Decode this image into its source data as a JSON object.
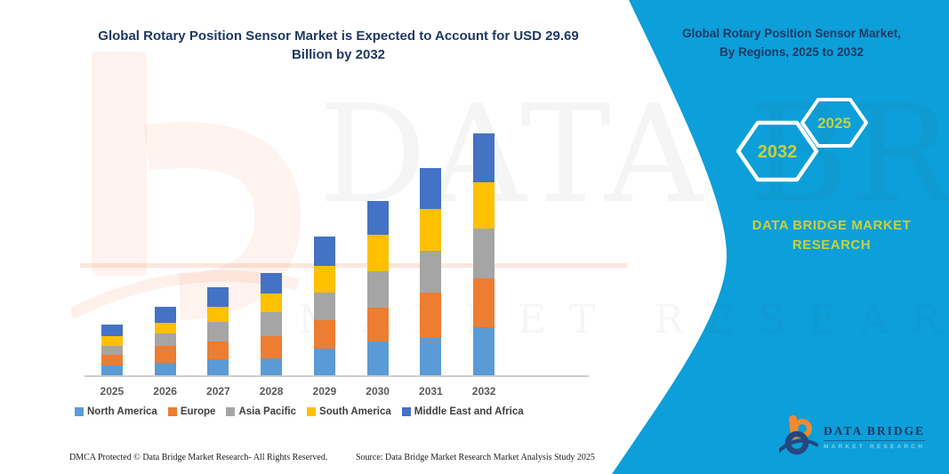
{
  "header": {
    "title_line1": "Global Rotary Position Sensor Market is Expected to Account for USD 29.69",
    "title_line2": "Billion by 2032"
  },
  "panel": {
    "title_line1": "Global Rotary Position Sensor Market,",
    "title_line2": "By Regions, 2025 to 2032",
    "bg_color": "#0C9FD9",
    "accent_text_color": "#C6D23B",
    "hexagons": [
      {
        "label": "2032"
      },
      {
        "label": "2025"
      }
    ],
    "brand_text": "DATA BRIDGE MARKET RESEARCH"
  },
  "chart_data": {
    "type": "bar",
    "stacked": true,
    "title": "Global Rotary Position Sensor Market is Expected to Account for USD 29.69 Billion by 2032",
    "unit": "USD Billion",
    "xlabel": "",
    "ylabel": "",
    "y_axis_visible": false,
    "grid": false,
    "legend_position": "bottom",
    "ylim": [
      0,
      31
    ],
    "categories": [
      "2025",
      "2026",
      "2027",
      "2028",
      "2029",
      "2030",
      "2031",
      "2032"
    ],
    "series": [
      {
        "name": "North America",
        "color": "#5B9BD5",
        "values": [
          1.3,
          1.6,
          2.1,
          2.2,
          3.4,
          4.2,
          4.7,
          6.0
        ]
      },
      {
        "name": "Europe",
        "color": "#ED7D31",
        "values": [
          1.3,
          2.1,
          2.1,
          2.7,
          3.4,
          4.2,
          5.5,
          6.0
        ]
      },
      {
        "name": "Asia Pacific",
        "color": "#A5A5A5",
        "values": [
          1.1,
          1.5,
          2.4,
          2.9,
          3.4,
          4.4,
          5.1,
          6.1
        ]
      },
      {
        "name": "South America",
        "color": "#FFC000",
        "values": [
          1.2,
          1.3,
          1.9,
          2.3,
          3.3,
          4.5,
          5.1,
          5.6
        ]
      },
      {
        "name": "Middle East and Africa",
        "color": "#4472C4",
        "values": [
          1.4,
          2.0,
          2.4,
          2.5,
          3.6,
          4.1,
          5.0,
          6.0
        ]
      }
    ],
    "totals": [
      6.3,
      8.5,
      10.9,
      12.6,
      17.1,
      21.4,
      25.4,
      29.7
    ]
  },
  "watermark": {
    "big": "DATA BRIDGE",
    "row": "MARKET RESEARCH"
  },
  "footer": {
    "left": "DMCA Protected © Data Bridge Market Research-  All Rights Reserved.",
    "source": "Source: Data Bridge Market Research  Market Analysis Study 2025"
  },
  "logo": {
    "name": "DATA BRIDGE",
    "subtitle": "MARKET RESEARCH"
  }
}
